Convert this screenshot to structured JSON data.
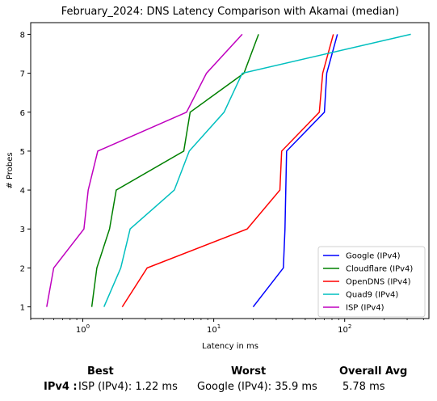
{
  "chart_data": {
    "type": "line",
    "title": "February_2024: DNS Latency Comparison with Akamai (median)",
    "xlabel": "Latency in ms",
    "ylabel": "# Probes",
    "xscale": "log",
    "xlim": [
      0.4,
      440
    ],
    "ylim": [
      0.7,
      8.3
    ],
    "x_tick_labels": [
      {
        "value": 1,
        "label": "10^0"
      },
      {
        "value": 10,
        "label": "10^1"
      },
      {
        "value": 100,
        "label": "10^2"
      }
    ],
    "y_ticks": [
      1,
      2,
      3,
      4,
      5,
      6,
      7,
      8
    ],
    "legend_position": "lower-right",
    "grid": false,
    "series": [
      {
        "name": "Google (IPv4)",
        "color": "#0000ff",
        "points": [
          [
            20,
            1
          ],
          [
            34,
            2
          ],
          [
            35,
            3
          ],
          [
            35.5,
            4
          ],
          [
            36,
            5
          ],
          [
            70,
            6
          ],
          [
            73,
            7
          ],
          [
            88,
            8
          ]
        ]
      },
      {
        "name": "Cloudflare (IPv4)",
        "color": "#008000",
        "points": [
          [
            1.17,
            1
          ],
          [
            1.28,
            2
          ],
          [
            1.6,
            3
          ],
          [
            1.8,
            4
          ],
          [
            5.9,
            5
          ],
          [
            6.6,
            6
          ],
          [
            17,
            7
          ],
          [
            22,
            8
          ]
        ]
      },
      {
        "name": "OpenDNS (IPv4)",
        "color": "#ff0000",
        "points": [
          [
            2.0,
            1
          ],
          [
            3.1,
            2
          ],
          [
            18,
            3
          ],
          [
            32,
            4
          ],
          [
            33,
            5
          ],
          [
            64,
            6
          ],
          [
            68,
            7
          ],
          [
            82,
            8
          ]
        ]
      },
      {
        "name": "Quad9 (IPv4)",
        "color": "#00bfbf",
        "points": [
          [
            1.45,
            1
          ],
          [
            1.95,
            2
          ],
          [
            2.3,
            3
          ],
          [
            5.0,
            4
          ],
          [
            6.5,
            5
          ],
          [
            12,
            6
          ],
          [
            16.5,
            7
          ],
          [
            320,
            8
          ]
        ]
      },
      {
        "name": "ISP (IPv4)",
        "color": "#bf00bf",
        "points": [
          [
            0.53,
            1
          ],
          [
            0.6,
            2
          ],
          [
            1.02,
            3
          ],
          [
            1.1,
            4
          ],
          [
            1.3,
            5
          ],
          [
            6.2,
            6
          ],
          [
            8.8,
            7
          ],
          [
            16.5,
            8
          ]
        ]
      }
    ]
  },
  "summary": {
    "headers": {
      "best": "Best",
      "worst": "Worst",
      "overall": "Overall Avg"
    },
    "rows": [
      {
        "label": "IPv4 :",
        "best": "ISP (IPv4): 1.22 ms",
        "worst": "Google (IPv4): 35.9 ms",
        "overall": "5.78 ms"
      }
    ]
  }
}
